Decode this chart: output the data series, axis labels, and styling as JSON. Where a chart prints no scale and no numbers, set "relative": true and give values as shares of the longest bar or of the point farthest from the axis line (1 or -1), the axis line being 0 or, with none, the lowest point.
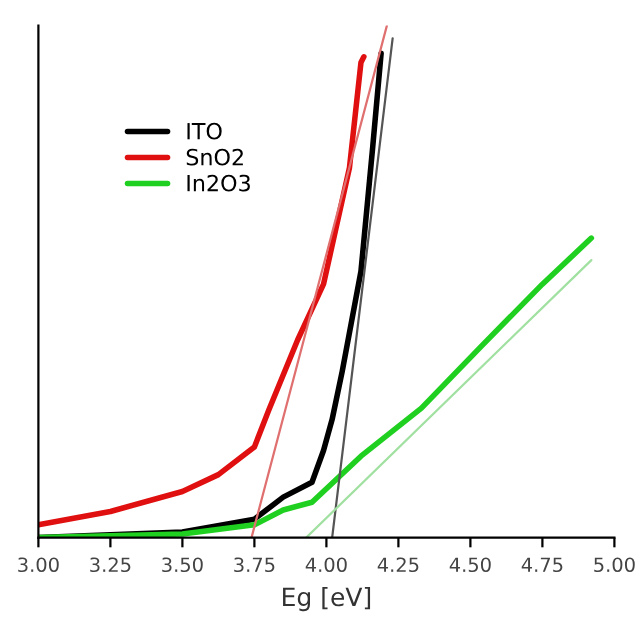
{
  "chart_data": {
    "type": "line",
    "relative": true,
    "xlabel": "Eg [eV]",
    "xlim": [
      3.0,
      5.0
    ],
    "xticks": [
      {
        "value": 3.0,
        "label": "3.00"
      },
      {
        "value": 3.25,
        "label": "3.25"
      },
      {
        "value": 3.5,
        "label": "3.50"
      },
      {
        "value": 3.75,
        "label": "3.75"
      },
      {
        "value": 4.0,
        "label": "4.00"
      },
      {
        "value": 4.25,
        "label": "4.25"
      },
      {
        "value": 4.5,
        "label": "4.50"
      },
      {
        "value": 4.75,
        "label": "4.75"
      },
      {
        "value": 5.0,
        "label": "5.00"
      }
    ],
    "series": [
      {
        "name": "ITO",
        "color": "#000000",
        "x": [
          3.0,
          3.5,
          3.75,
          3.85,
          3.95,
          3.99,
          4.02,
          4.055,
          4.12,
          4.16,
          4.19
        ],
        "values": [
          0,
          0.011,
          0.036,
          0.079,
          0.108,
          0.17,
          0.231,
          0.325,
          0.52,
          0.758,
          0.946
        ]
      },
      {
        "name": "SnO2",
        "color": "#e01010",
        "x": [
          3.0,
          3.25,
          3.5,
          3.625,
          3.75,
          3.8,
          3.9,
          3.99,
          4.08,
          4.12,
          4.13
        ],
        "values": [
          0.025,
          0.051,
          0.09,
          0.123,
          0.177,
          0.249,
          0.386,
          0.495,
          0.722,
          0.928,
          0.939
        ]
      },
      {
        "name": "In2O3",
        "color": "#20d020",
        "x": [
          3.0,
          3.5,
          3.75,
          3.85,
          3.95,
          4.12,
          4.33,
          4.54,
          4.75,
          4.92
        ],
        "values": [
          0,
          0.007,
          0.025,
          0.054,
          0.069,
          0.159,
          0.253,
          0.375,
          0.495,
          0.585
        ]
      },
      {
        "color": "#e07070",
        "x": [
          3.74,
          4.21
        ],
        "values": [
          0,
          1.0
        ]
      },
      {
        "color": "#555555",
        "x": [
          4.02,
          4.23
        ],
        "values": [
          0,
          0.975
        ]
      },
      {
        "color": "#a0e0a0",
        "x": [
          3.93,
          4.92
        ],
        "values": [
          0,
          0.542
        ]
      }
    ],
    "legend": "top left",
    "grid": false
  }
}
